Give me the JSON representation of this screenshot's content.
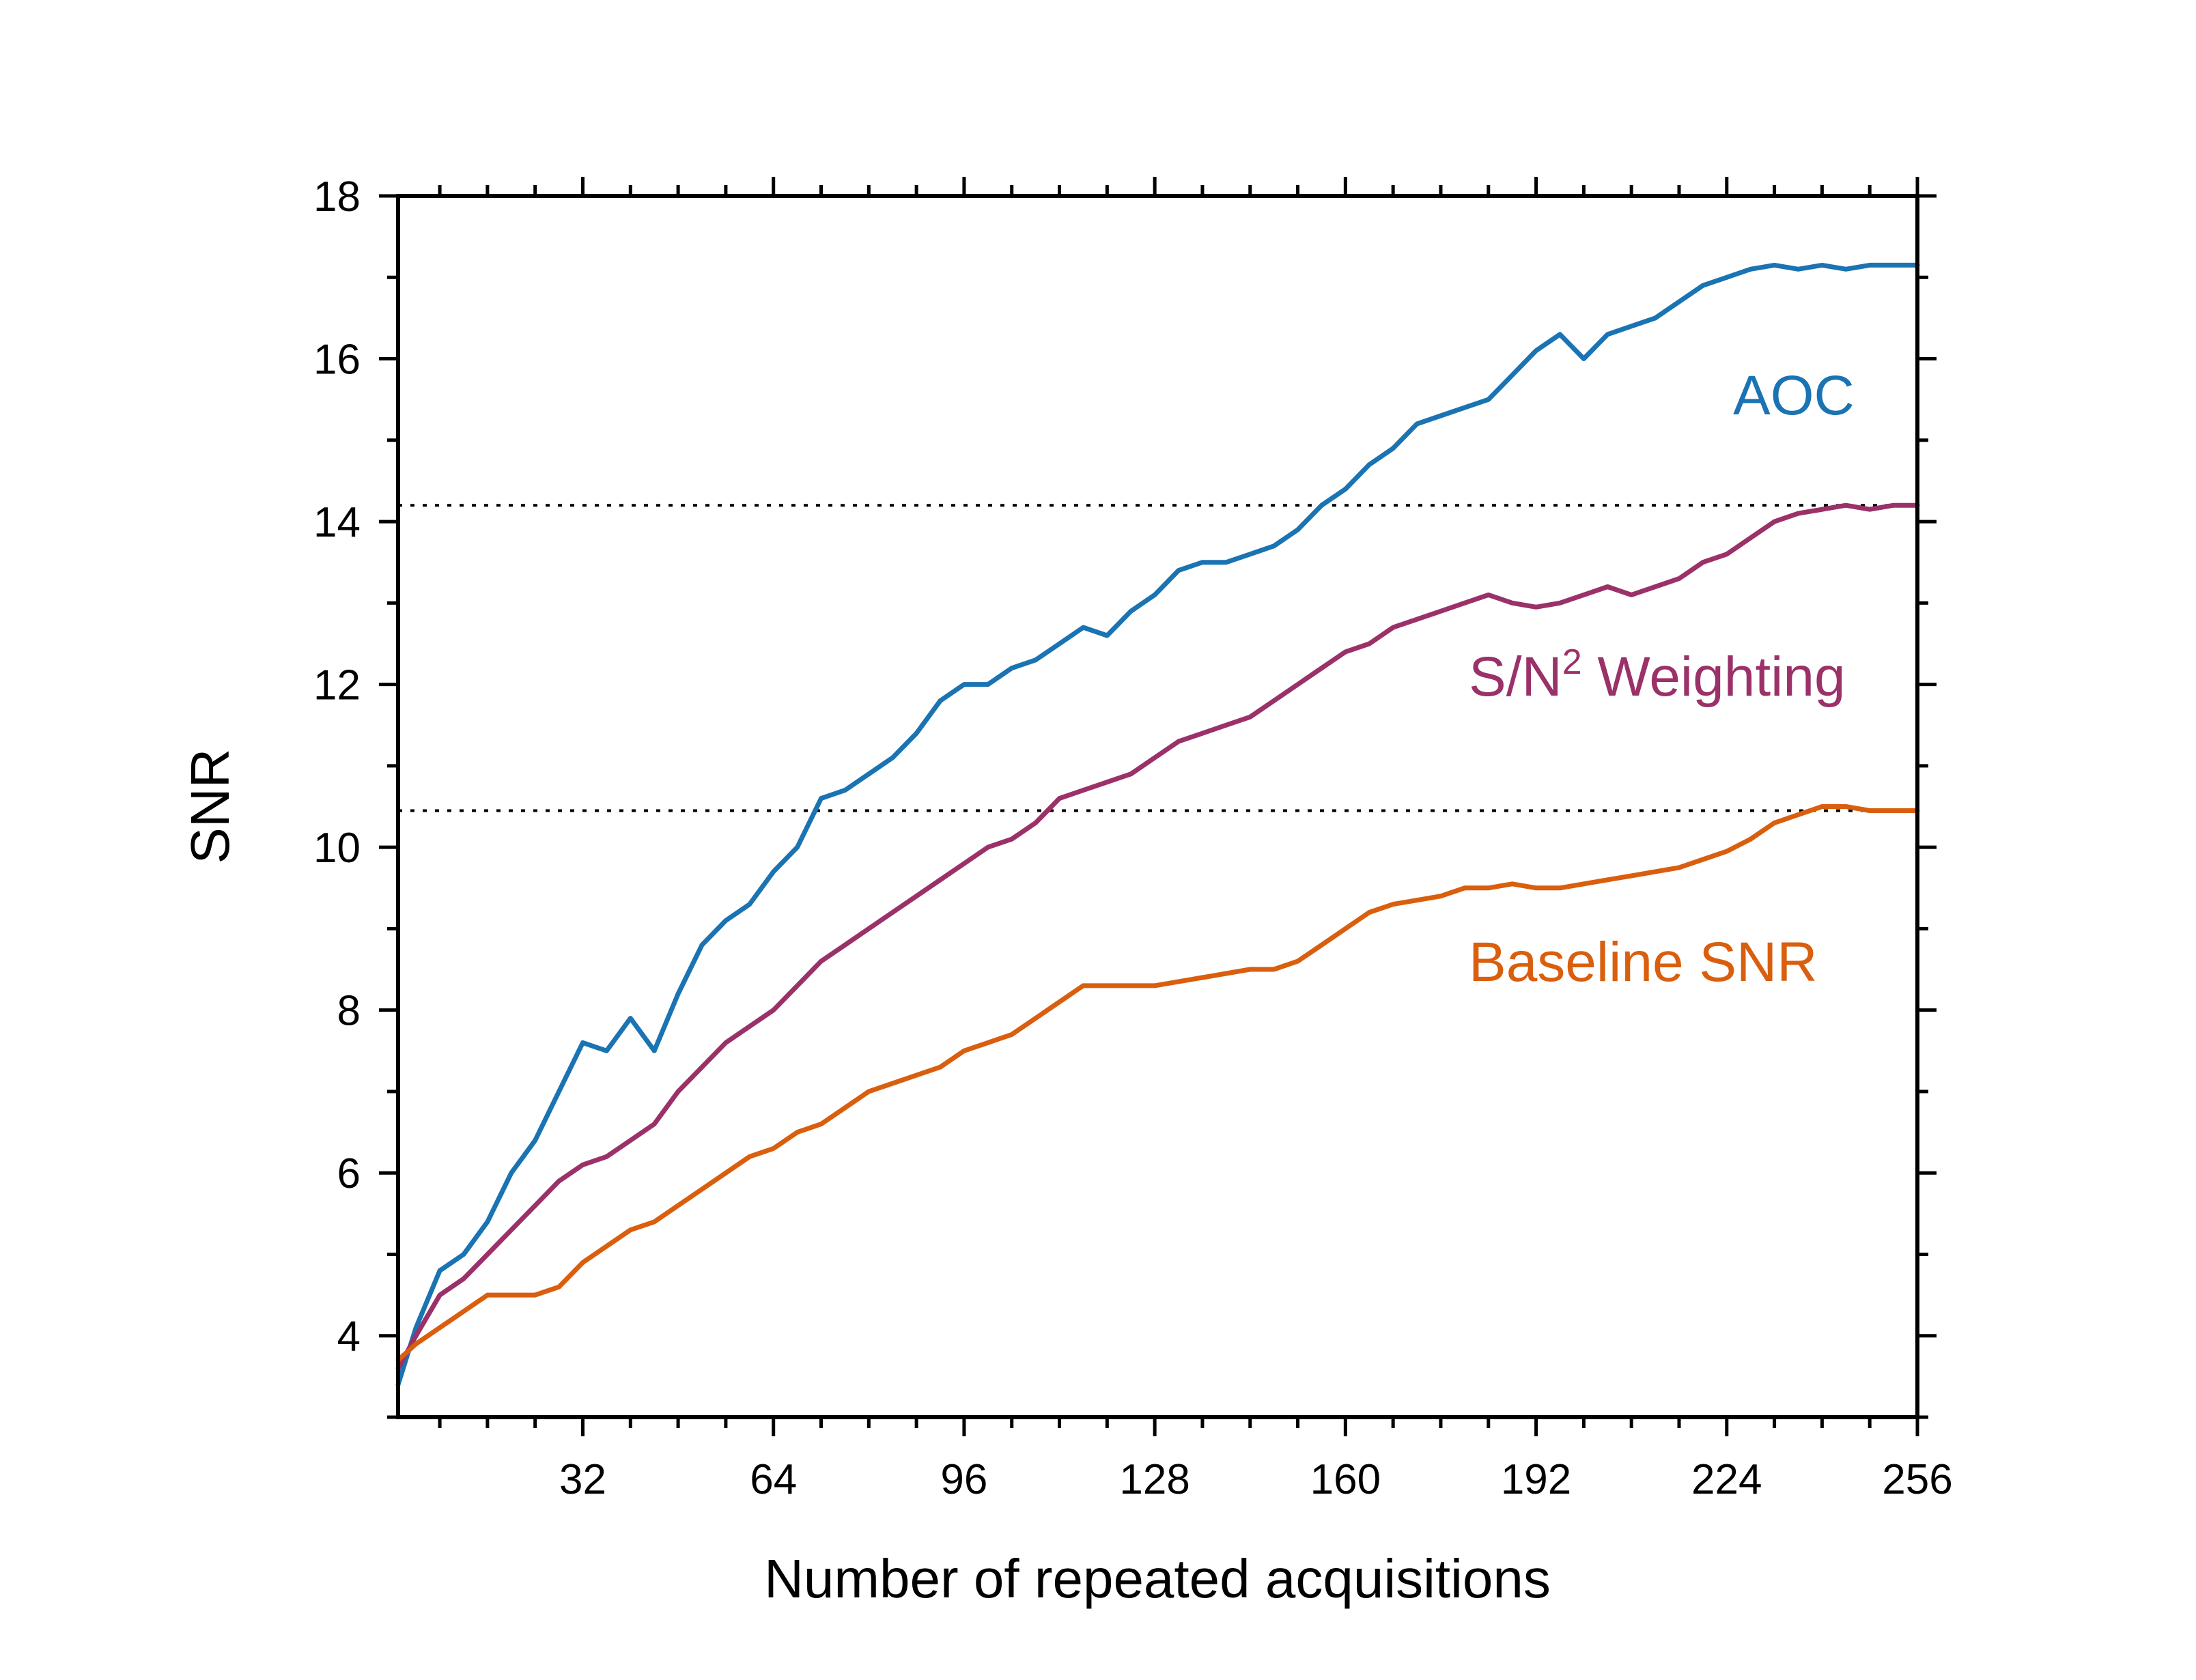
{
  "chart_data": {
    "type": "line",
    "title": "",
    "xlabel": "Number of repeated acquisitions",
    "ylabel": "SNR",
    "xlim": [
      1,
      256
    ],
    "ylim": [
      3,
      18
    ],
    "x_ticks": [
      32,
      64,
      96,
      128,
      160,
      192,
      224,
      256
    ],
    "y_ticks": [
      4,
      6,
      8,
      10,
      12,
      14,
      16,
      18
    ],
    "grid": false,
    "reference_lines": [
      {
        "orientation": "horizontal",
        "y": 14.2,
        "style": "dotted"
      },
      {
        "orientation": "horizontal",
        "y": 10.45,
        "style": "dotted"
      }
    ],
    "series": [
      {
        "name": "AOC",
        "label": "AOC",
        "color": "#1a73b2",
        "x": [
          1,
          4,
          8,
          12,
          16,
          20,
          24,
          28,
          32,
          36,
          40,
          44,
          48,
          52,
          56,
          60,
          64,
          68,
          72,
          76,
          80,
          84,
          88,
          92,
          96,
          100,
          104,
          108,
          112,
          116,
          120,
          124,
          128,
          132,
          136,
          140,
          144,
          148,
          152,
          156,
          160,
          164,
          168,
          172,
          176,
          180,
          184,
          188,
          192,
          196,
          200,
          204,
          208,
          212,
          216,
          220,
          224,
          228,
          232,
          236,
          240,
          244,
          248,
          252,
          256
        ],
        "values": [
          3.4,
          4.1,
          4.8,
          5.0,
          5.4,
          6.0,
          6.4,
          7.0,
          7.6,
          7.5,
          7.9,
          7.5,
          8.2,
          8.8,
          9.1,
          9.3,
          9.7,
          10.0,
          10.6,
          10.7,
          10.9,
          11.1,
          11.4,
          11.8,
          12.0,
          12.0,
          12.2,
          12.3,
          12.5,
          12.7,
          12.6,
          12.9,
          13.1,
          13.4,
          13.5,
          13.5,
          13.6,
          13.7,
          13.9,
          14.2,
          14.4,
          14.7,
          14.9,
          15.2,
          15.3,
          15.4,
          15.5,
          15.8,
          16.1,
          16.3,
          16.0,
          16.3,
          16.4,
          16.5,
          16.7,
          16.9,
          17.0,
          17.1,
          17.15,
          17.1,
          17.15,
          17.1,
          17.15,
          17.15,
          17.15
        ]
      },
      {
        "name": "S/N² Weighting",
        "label": "S/N",
        "label_sup": "2",
        "label_suffix": " Weighting",
        "color": "#9b3169",
        "x": [
          1,
          4,
          8,
          12,
          16,
          20,
          24,
          28,
          32,
          36,
          40,
          44,
          48,
          52,
          56,
          60,
          64,
          68,
          72,
          76,
          80,
          84,
          88,
          92,
          96,
          100,
          104,
          108,
          112,
          116,
          120,
          124,
          128,
          132,
          136,
          140,
          144,
          148,
          152,
          156,
          160,
          164,
          168,
          172,
          176,
          180,
          184,
          188,
          192,
          196,
          200,
          204,
          208,
          212,
          216,
          220,
          224,
          228,
          232,
          236,
          240,
          244,
          248,
          252,
          256
        ],
        "values": [
          3.6,
          4.0,
          4.5,
          4.7,
          5.0,
          5.3,
          5.6,
          5.9,
          6.1,
          6.2,
          6.4,
          6.6,
          7.0,
          7.3,
          7.6,
          7.8,
          8.0,
          8.3,
          8.6,
          8.8,
          9.0,
          9.2,
          9.4,
          9.6,
          9.8,
          10.0,
          10.1,
          10.3,
          10.6,
          10.7,
          10.8,
          10.9,
          11.1,
          11.3,
          11.4,
          11.5,
          11.6,
          11.8,
          12.0,
          12.2,
          12.4,
          12.5,
          12.7,
          12.8,
          12.9,
          13.0,
          13.1,
          13.0,
          12.95,
          13.0,
          13.1,
          13.2,
          13.1,
          13.2,
          13.3,
          13.5,
          13.6,
          13.8,
          14.0,
          14.1,
          14.15,
          14.2,
          14.15,
          14.2,
          14.2
        ]
      },
      {
        "name": "Baseline SNR",
        "label": "Baseline SNR",
        "color": "#d95f0e",
        "x": [
          1,
          4,
          8,
          12,
          16,
          20,
          24,
          28,
          32,
          36,
          40,
          44,
          48,
          52,
          56,
          60,
          64,
          68,
          72,
          76,
          80,
          84,
          88,
          92,
          96,
          100,
          104,
          108,
          112,
          116,
          120,
          124,
          128,
          132,
          136,
          140,
          144,
          148,
          152,
          156,
          160,
          164,
          168,
          172,
          176,
          180,
          184,
          188,
          192,
          196,
          200,
          204,
          208,
          212,
          216,
          220,
          224,
          228,
          232,
          236,
          240,
          244,
          248,
          252,
          256
        ],
        "values": [
          3.7,
          3.9,
          4.1,
          4.3,
          4.5,
          4.5,
          4.5,
          4.6,
          4.9,
          5.1,
          5.3,
          5.4,
          5.6,
          5.8,
          6.0,
          6.2,
          6.3,
          6.5,
          6.6,
          6.8,
          7.0,
          7.1,
          7.2,
          7.3,
          7.5,
          7.6,
          7.7,
          7.9,
          8.1,
          8.3,
          8.3,
          8.3,
          8.3,
          8.35,
          8.4,
          8.45,
          8.5,
          8.5,
          8.6,
          8.8,
          9.0,
          9.2,
          9.3,
          9.35,
          9.4,
          9.5,
          9.5,
          9.55,
          9.5,
          9.5,
          9.55,
          9.6,
          9.65,
          9.7,
          9.75,
          9.85,
          9.95,
          10.1,
          10.3,
          10.4,
          10.5,
          10.5,
          10.45,
          10.45,
          10.45
        ]
      }
    ]
  }
}
